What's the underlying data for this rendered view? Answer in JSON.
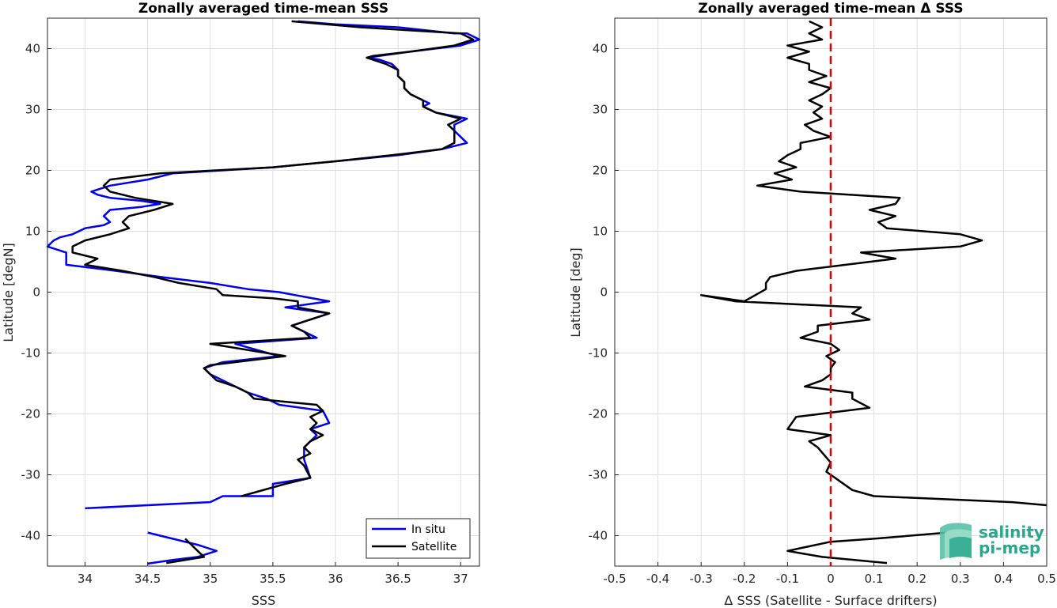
{
  "chart_data": [
    {
      "type": "line",
      "title": "Zonally averaged time-mean SSS",
      "xlabel": "SSS",
      "ylabel": "Latitude [degN]",
      "xlim": [
        33.7,
        37.15
      ],
      "ylim": [
        -45,
        45
      ],
      "xticks": [
        34,
        34.5,
        35,
        35.5,
        36,
        36.5,
        37
      ],
      "yticks": [
        -40,
        -30,
        -20,
        -10,
        0,
        10,
        20,
        30,
        40
      ],
      "grid": true,
      "legend": "bottom-right",
      "series": [
        {
          "name": "In situ",
          "color": "#0000ee",
          "points": [
            [
              35.7,
              44.5
            ],
            [
              36.0,
              44.0
            ],
            [
              36.5,
              43.5
            ],
            [
              36.95,
              42.5
            ],
            [
              37.05,
              42.5
            ],
            [
              37.15,
              41.5
            ],
            [
              37.0,
              40.5
            ],
            [
              36.6,
              39.5
            ],
            [
              36.35,
              38.8
            ],
            [
              36.25,
              38.5
            ],
            [
              36.35,
              38.2
            ],
            [
              36.45,
              37.5
            ],
            [
              36.5,
              36.5
            ],
            [
              36.5,
              35.5
            ],
            [
              36.55,
              34.5
            ],
            [
              36.55,
              33.5
            ],
            [
              36.6,
              32.5
            ],
            [
              36.7,
              31.5
            ],
            [
              36.75,
              31
            ],
            [
              36.7,
              30.5
            ],
            [
              36.8,
              29.5
            ],
            [
              37.05,
              28.5
            ],
            [
              36.95,
              27.5
            ],
            [
              36.95,
              26.5
            ],
            [
              37.0,
              25.5
            ],
            [
              37.05,
              24.5
            ],
            [
              36.85,
              23.5
            ],
            [
              36.5,
              22.5
            ],
            [
              36.0,
              21.5
            ],
            [
              35.5,
              20.5
            ],
            [
              34.7,
              19.5
            ],
            [
              34.5,
              18.5
            ],
            [
              34.2,
              17.5
            ],
            [
              34.05,
              16.5
            ],
            [
              34.1,
              16
            ],
            [
              34.2,
              15.5
            ],
            [
              34.45,
              15
            ],
            [
              34.6,
              14.5
            ],
            [
              34.45,
              14
            ],
            [
              34.2,
              13.5
            ],
            [
              34.15,
              12.5
            ],
            [
              34.2,
              11.5
            ],
            [
              34.15,
              11
            ],
            [
              34.0,
              10.5
            ],
            [
              33.9,
              9.5
            ],
            [
              33.8,
              9
            ],
            [
              33.75,
              8.5
            ],
            [
              33.7,
              7.5
            ],
            [
              33.85,
              6.5
            ],
            [
              33.85,
              5.5
            ],
            [
              33.85,
              4.5
            ],
            [
              34.25,
              3.5
            ],
            [
              34.6,
              2.5
            ],
            [
              35.0,
              1.5
            ],
            [
              35.3,
              0.5
            ],
            [
              35.55,
              0
            ],
            [
              35.95,
              -1.5
            ],
            [
              35.6,
              -2.5
            ],
            [
              35.95,
              -3.5
            ],
            [
              35.8,
              -4.5
            ],
            [
              35.65,
              -5.5
            ],
            [
              35.75,
              -6.5
            ],
            [
              35.85,
              -7.5
            ],
            [
              35.2,
              -8.5
            ],
            [
              35.55,
              -10.5
            ],
            [
              35.1,
              -11.5
            ],
            [
              34.95,
              -12.5
            ],
            [
              35.0,
              -13.5
            ],
            [
              35.1,
              -14.5
            ],
            [
              35.3,
              -16.5
            ],
            [
              35.45,
              -17.5
            ],
            [
              35.55,
              -18.5
            ],
            [
              35.9,
              -19.5
            ],
            [
              35.95,
              -21.5
            ],
            [
              35.8,
              -22.5
            ],
            [
              35.85,
              -23.5
            ],
            [
              35.8,
              -24.5
            ],
            [
              35.75,
              -25.5
            ],
            [
              35.75,
              -27.5
            ],
            [
              35.8,
              -30.5
            ],
            [
              35.5,
              -31.5
            ],
            [
              35.5,
              -33.5
            ],
            [
              35.1,
              -33.5
            ],
            [
              35.0,
              -34.5
            ],
            [
              34.0,
              -35.5
            ]
          ],
          "points2": [
            [
              34.5,
              -39.5
            ],
            [
              34.9,
              -41.5
            ],
            [
              35.05,
              -42.5
            ],
            [
              34.9,
              -43.5
            ],
            [
              34.7,
              -44.0
            ],
            [
              34.5,
              -44.6
            ]
          ]
        },
        {
          "name": "Satellite",
          "color": "#000000",
          "points": [
            [
              35.65,
              44.5
            ],
            [
              36.2,
              43.5
            ],
            [
              37.0,
              42.5
            ],
            [
              37.1,
              41.5
            ],
            [
              36.95,
              40.5
            ],
            [
              36.6,
              39.5
            ],
            [
              36.3,
              38.8
            ],
            [
              36.25,
              38.5
            ],
            [
              36.4,
              37.5
            ],
            [
              36.5,
              36.5
            ],
            [
              36.5,
              35.5
            ],
            [
              36.55,
              34.5
            ],
            [
              36.55,
              33.5
            ],
            [
              36.6,
              32.5
            ],
            [
              36.7,
              31.5
            ],
            [
              36.7,
              30.5
            ],
            [
              36.8,
              29.5
            ],
            [
              37.0,
              28.5
            ],
            [
              36.9,
              27.5
            ],
            [
              36.95,
              26.5
            ],
            [
              36.95,
              25.5
            ],
            [
              36.95,
              24.5
            ],
            [
              36.85,
              23.5
            ],
            [
              36.45,
              22.5
            ],
            [
              36.0,
              21.5
            ],
            [
              35.5,
              20.5
            ],
            [
              34.6,
              19.5
            ],
            [
              34.2,
              18.5
            ],
            [
              34.15,
              17.5
            ],
            [
              34.2,
              16.5
            ],
            [
              34.4,
              15.5
            ],
            [
              34.7,
              14.5
            ],
            [
              34.55,
              13.5
            ],
            [
              34.35,
              12.5
            ],
            [
              34.3,
              11.5
            ],
            [
              34.35,
              10.5
            ],
            [
              34.2,
              9.5
            ],
            [
              34.0,
              8.5
            ],
            [
              33.9,
              7.5
            ],
            [
              33.9,
              6.5
            ],
            [
              34.1,
              5.5
            ],
            [
              34.0,
              4.5
            ],
            [
              34.3,
              3.5
            ],
            [
              34.55,
              2.5
            ],
            [
              34.75,
              1.5
            ],
            [
              35.05,
              0.5
            ],
            [
              35.1,
              -0.5
            ],
            [
              35.5,
              -1.0
            ],
            [
              35.7,
              -1.5
            ],
            [
              35.7,
              -2.5
            ],
            [
              35.95,
              -3.5
            ],
            [
              35.65,
              -5.5
            ],
            [
              35.75,
              -6.5
            ],
            [
              35.8,
              -7.5
            ],
            [
              35.0,
              -8.5
            ],
            [
              35.6,
              -10.5
            ],
            [
              35.0,
              -12.0
            ],
            [
              34.95,
              -12.5
            ],
            [
              35.05,
              -14.5
            ],
            [
              35.2,
              -15.5
            ],
            [
              35.3,
              -16.5
            ],
            [
              35.35,
              -17.5
            ],
            [
              35.85,
              -18.5
            ],
            [
              35.9,
              -19.5
            ],
            [
              35.8,
              -20.5
            ],
            [
              35.85,
              -21.5
            ],
            [
              35.8,
              -22.5
            ],
            [
              35.9,
              -23.5
            ],
            [
              35.8,
              -24.5
            ],
            [
              35.75,
              -25.5
            ],
            [
              35.8,
              -26.5
            ],
            [
              35.7,
              -27.5
            ],
            [
              35.75,
              -28.5
            ],
            [
              35.8,
              -30.5
            ],
            [
              35.6,
              -31.5
            ],
            [
              35.25,
              -33.5
            ]
          ],
          "points2": [
            [
              34.8,
              -40.5
            ],
            [
              34.85,
              -41.5
            ],
            [
              34.9,
              -42.5
            ],
            [
              34.95,
              -43.5
            ],
            [
              34.65,
              -44.5
            ]
          ]
        }
      ]
    },
    {
      "type": "line",
      "title": "Zonally averaged time-mean Δ SSS",
      "xlabel": "Δ SSS (Satellite - Surface drifters)",
      "ylabel": "Latitude [deg]",
      "xlim": [
        -0.5,
        0.5
      ],
      "ylim": [
        -45,
        45
      ],
      "xticks": [
        -0.5,
        -0.4,
        -0.3,
        -0.2,
        -0.1,
        0,
        0.1,
        0.2,
        0.3,
        0.4,
        0.5
      ],
      "yticks": [
        -40,
        -30,
        -20,
        -10,
        0,
        10,
        20,
        30,
        40
      ],
      "grid": true,
      "reference_line": {
        "x": 0,
        "color": "#dd0000",
        "style": "dashed"
      },
      "series": [
        {
          "color": "#000000",
          "points": [
            [
              -0.05,
              44.5
            ],
            [
              -0.02,
              43.5
            ],
            [
              -0.05,
              42.5
            ],
            [
              -0.02,
              41.5
            ],
            [
              -0.1,
              40.5
            ],
            [
              -0.05,
              39.5
            ],
            [
              -0.1,
              38.5
            ],
            [
              -0.05,
              37.5
            ],
            [
              -0.05,
              36.5
            ],
            [
              -0.01,
              35.5
            ],
            [
              -0.05,
              34.5
            ],
            [
              0.0,
              33.5
            ],
            [
              -0.02,
              32.5
            ],
            [
              -0.05,
              31.5
            ],
            [
              -0.02,
              30.5
            ],
            [
              -0.04,
              29.5
            ],
            [
              -0.02,
              28.5
            ],
            [
              -0.06,
              27.5
            ],
            [
              -0.04,
              26.5
            ],
            [
              0.0,
              25.5
            ],
            [
              -0.07,
              24.5
            ],
            [
              -0.07,
              23.5
            ],
            [
              -0.1,
              22.5
            ],
            [
              -0.12,
              21.5
            ],
            [
              -0.08,
              20.5
            ],
            [
              -0.13,
              19.5
            ],
            [
              -0.09,
              18.5
            ],
            [
              -0.17,
              17.5
            ],
            [
              -0.07,
              16.5
            ],
            [
              0.16,
              15.5
            ],
            [
              0.15,
              14.5
            ],
            [
              0.09,
              13.5
            ],
            [
              0.15,
              12.5
            ],
            [
              0.11,
              11.5
            ],
            [
              0.13,
              10.5
            ],
            [
              0.3,
              9.5
            ],
            [
              0.35,
              8.5
            ],
            [
              0.3,
              7.5
            ],
            [
              0.07,
              6.5
            ],
            [
              0.15,
              5.5
            ],
            [
              -0.08,
              3.5
            ],
            [
              -0.14,
              2.5
            ],
            [
              -0.15,
              1.5
            ],
            [
              -0.15,
              0.5
            ],
            [
              -0.2,
              -1.5
            ],
            [
              -0.3,
              -0.5
            ],
            [
              -0.22,
              -1.5
            ],
            [
              0.07,
              -2.5
            ],
            [
              0.05,
              -3.5
            ],
            [
              0.09,
              -4.5
            ],
            [
              -0.03,
              -5.5
            ],
            [
              -0.03,
              -6.5
            ],
            [
              -0.07,
              -7.5
            ],
            [
              0.0,
              -8.5
            ],
            [
              0.02,
              -9.5
            ],
            [
              -0.01,
              -10.5
            ],
            [
              0.01,
              -11.5
            ],
            [
              0.0,
              -12.5
            ],
            [
              0.0,
              -13.5
            ],
            [
              -0.02,
              -14.5
            ],
            [
              -0.06,
              -15.5
            ],
            [
              0.05,
              -16.5
            ],
            [
              0.05,
              -17.5
            ],
            [
              0.09,
              -19.0
            ],
            [
              -0.08,
              -20.5
            ],
            [
              -0.1,
              -22.5
            ],
            [
              0.0,
              -23.5
            ],
            [
              -0.05,
              -24.5
            ],
            [
              -0.03,
              -25.5
            ],
            [
              0.0,
              -28.0
            ],
            [
              -0.01,
              -29.5
            ],
            [
              0.05,
              -32.5
            ],
            [
              0.1,
              -33.5
            ],
            [
              0.42,
              -34.5
            ],
            [
              0.5,
              -35.0
            ]
          ],
          "points2": [
            [
              0.27,
              -39.5
            ],
            [
              0.1,
              -40.5
            ],
            [
              0.0,
              -41.0
            ],
            [
              -0.1,
              -42.5
            ],
            [
              -0.02,
              -43.5
            ],
            [
              0.13,
              -44.5
            ]
          ]
        }
      ]
    }
  ],
  "legend": {
    "entries": [
      {
        "label": "In situ",
        "color": "#0000ee"
      },
      {
        "label": "Satellite",
        "color": "#000000"
      }
    ]
  },
  "logo": {
    "line1": "salinity",
    "line2": "pi-mep",
    "color": "#2aa88e"
  }
}
